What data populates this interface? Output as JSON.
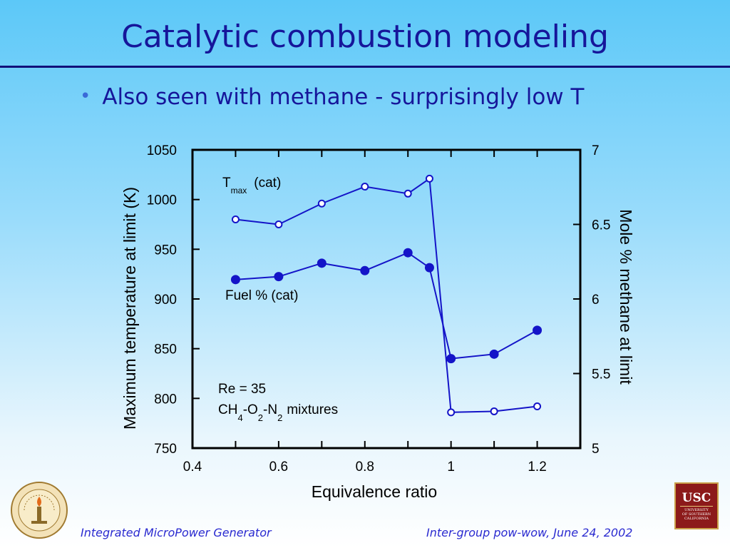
{
  "slide": {
    "title": "Catalytic combustion modeling",
    "bullet": "Also seen with methane - surprisingly low T",
    "footer_left": "Integrated MicroPower Generator",
    "footer_right": "Inter-group pow-wow, June 24, 2002",
    "logo_right": {
      "big": "USC",
      "line1": "UNIVERSITY",
      "line2": "OF SOUTHERN",
      "line3": "CALIFORNIA"
    },
    "logo_left": "California Institute of Technology seal 1891",
    "colors": {
      "title": "#16169a",
      "series": "#1414c8",
      "footer": "#2a2ad0"
    }
  },
  "chart_data": {
    "type": "line",
    "xlabel": "Equivalence ratio",
    "ylabel": "Maximum temperature at limit (K)",
    "y2label": "Mole % methane at limit",
    "xlim": [
      0.4,
      1.3
    ],
    "ylim": [
      750,
      1050
    ],
    "y2lim": [
      5,
      7
    ],
    "xticks": [
      "0.4",
      "0.6",
      "0.8",
      "1",
      "1.2"
    ],
    "yticks": [
      "750",
      "800",
      "850",
      "900",
      "950",
      "1000",
      "1050"
    ],
    "y2ticks": [
      "5",
      "5.5",
      "6",
      "6.5",
      "7"
    ],
    "series": [
      {
        "axis": "left",
        "marker": "open-circle",
        "x": [
          0.5,
          0.6,
          0.7,
          0.8,
          0.9,
          0.95,
          1.0,
          1.1,
          1.2
        ],
        "values": [
          980,
          975,
          996,
          1013,
          1006,
          1021,
          786,
          787,
          792
        ]
      },
      {
        "axis": "right",
        "marker": "filled-circle",
        "x": [
          0.5,
          0.6,
          0.7,
          0.8,
          0.9,
          0.95,
          1.0,
          1.1,
          1.2
        ],
        "values": [
          6.13,
          6.15,
          6.24,
          6.19,
          6.31,
          6.21,
          5.6,
          5.63,
          5.79
        ]
      }
    ],
    "annotations": {
      "tmax": {
        "main": "T",
        "sub": "max",
        "rest": "(cat)"
      },
      "fuel": "Fuel % (cat)",
      "re": "Re = 35",
      "mix": {
        "a": "CH",
        "s1": "4",
        "b": "-O",
        "s2": "2",
        "c": "-N",
        "s3": "2",
        "d": "mixtures"
      }
    }
  }
}
